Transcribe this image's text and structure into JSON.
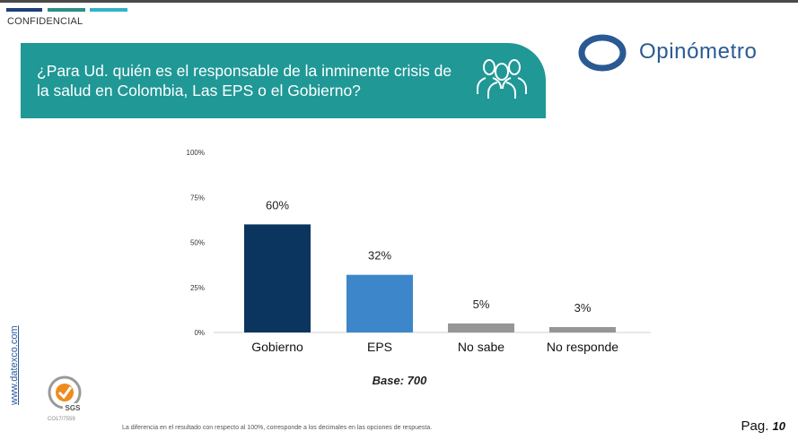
{
  "header": {
    "confidential_label": "CONFIDENCIAL",
    "question": "¿Para Ud. quién es el responsable de la inminente crisis de la salud en Colombia, Las EPS o el Gobierno?",
    "brand": "Opinómetro",
    "people_icon": "people-group-icon"
  },
  "chart_data": {
    "type": "bar",
    "categories": [
      "Gobierno",
      "EPS",
      "No sabe",
      "No responde"
    ],
    "values": [
      60,
      32,
      5,
      3
    ],
    "value_labels": [
      "60%",
      "32%",
      "5%",
      "3%"
    ],
    "bar_colors": [
      "#0b355f",
      "#3d86c9",
      "#969696",
      "#969696"
    ],
    "yticks": [
      "0%",
      "25%",
      "50%",
      "75%",
      "100%"
    ],
    "ylim": [
      0,
      100
    ],
    "grid": false
  },
  "base_label": "Base: 700",
  "footer": {
    "url": "www.datexco.com",
    "seal_label": "SGS",
    "seal_code": "CO17/7559",
    "note": "La diferencia en el resultado con respecto al 100%, corresponde a los decimales en las opciones de respuesta.",
    "page_label": "Pag.",
    "page_number": "10"
  }
}
